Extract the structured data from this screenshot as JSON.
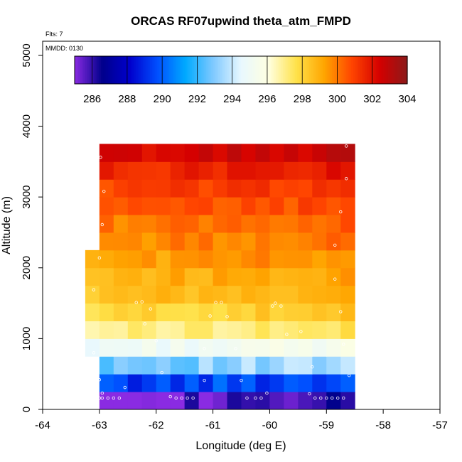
{
  "chart_data": {
    "type": "heatmap",
    "title": "ORCAS RF07upwind theta_atm_FMPD",
    "annotations": {
      "flights": "Flts: 7",
      "date": "MMDD: 0130"
    },
    "xlabel": "Longitude (deg E)",
    "ylabel": "Altitude (m)",
    "xlim": [
      -64,
      -57
    ],
    "ylim": [
      0,
      5200
    ],
    "x_ticks": [
      -64,
      -63,
      -62,
      -61,
      -60,
      -59,
      -58,
      -57
    ],
    "x_tick_labels": [
      "-64",
      "-63",
      "-62",
      "-61",
      "-60",
      "-59",
      "-58",
      "-57"
    ],
    "y_ticks": [
      0,
      1000,
      2000,
      3000,
      4000,
      5000
    ],
    "y_tick_labels": [
      "0",
      "1000",
      "2000",
      "3000",
      "4000",
      "5000"
    ],
    "colorbar": {
      "label_values": [
        286,
        288,
        290,
        292,
        294,
        296,
        298,
        300,
        302,
        304
      ],
      "labels": [
        "286",
        "288",
        "290",
        "292",
        "294",
        "296",
        "298",
        "300",
        "302",
        "304"
      ],
      "range": [
        285,
        304
      ],
      "colors": [
        "#8a2be2",
        "#00008b",
        "#0000cd",
        "#0050ff",
        "#00aaff",
        "#7fc9ff",
        "#e8f8ff",
        "#ffffe0",
        "#ffe24a",
        "#ffa500",
        "#ff4500",
        "#d50000",
        "#8b1a1a"
      ]
    },
    "cell_lon_edges": [
      -63.0,
      -62.75,
      -62.5,
      -62.25,
      -62.0,
      -61.75,
      -61.5,
      -61.25,
      -61.0,
      -60.75,
      -60.5,
      -60.25,
      -60.0,
      -59.75,
      -59.5,
      -59.25,
      -59.0,
      -58.75,
      -58.5
    ],
    "altitude_bands": [
      {
        "bottom": 0,
        "top": 250,
        "value": 285.6
      },
      {
        "bottom": 250,
        "top": 500,
        "value": 289.6
      },
      {
        "bottom": 500,
        "top": 750,
        "value": 293.2
      },
      {
        "bottom": 750,
        "top": 1000,
        "value": 295.2,
        "x_start": -63.25
      },
      {
        "bottom": 1000,
        "top": 1250,
        "value": 297.2,
        "x_start": -63.25
      },
      {
        "bottom": 1250,
        "top": 1500,
        "value": 298.1,
        "x_start": -63.25
      },
      {
        "bottom": 1500,
        "top": 1750,
        "value": 298.7,
        "x_start": -63.25
      },
      {
        "bottom": 1750,
        "top": 2000,
        "value": 299.1,
        "x_start": -63.25
      },
      {
        "bottom": 2000,
        "top": 2250,
        "value": 299.5,
        "x_start": -63.25
      },
      {
        "bottom": 2250,
        "top": 2500,
        "value": 299.9
      },
      {
        "bottom": 2500,
        "top": 2750,
        "value": 300.2
      },
      {
        "bottom": 2750,
        "top": 3000,
        "value": 300.6
      },
      {
        "bottom": 3000,
        "top": 3250,
        "value": 301.1
      },
      {
        "bottom": 3250,
        "top": 3500,
        "value": 301.7
      },
      {
        "bottom": 3500,
        "top": 3750,
        "value": 302.5
      }
    ],
    "observation_points": [
      {
        "lon": -62.98,
        "alt": 3560
      },
      {
        "lon": -62.92,
        "alt": 3080
      },
      {
        "lon": -62.95,
        "alt": 2610
      },
      {
        "lon": -63.0,
        "alt": 2140
      },
      {
        "lon": -63.1,
        "alt": 1690
      },
      {
        "lon": -62.35,
        "alt": 1510
      },
      {
        "lon": -62.25,
        "alt": 1520
      },
      {
        "lon": -62.1,
        "alt": 1420
      },
      {
        "lon": -62.2,
        "alt": 1210
      },
      {
        "lon": -62.0,
        "alt": 970
      },
      {
        "lon": -61.9,
        "alt": 520
      },
      {
        "lon": -61.15,
        "alt": 860
      },
      {
        "lon": -61.05,
        "alt": 1320
      },
      {
        "lon": -60.95,
        "alt": 1510
      },
      {
        "lon": -60.85,
        "alt": 1510
      },
      {
        "lon": -60.75,
        "alt": 1310
      },
      {
        "lon": -60.6,
        "alt": 860
      },
      {
        "lon": -59.95,
        "alt": 1460
      },
      {
        "lon": -59.9,
        "alt": 1500
      },
      {
        "lon": -59.8,
        "alt": 1460
      },
      {
        "lon": -59.7,
        "alt": 1060
      },
      {
        "lon": -59.45,
        "alt": 1100
      },
      {
        "lon": -59.25,
        "alt": 600
      },
      {
        "lon": -58.85,
        "alt": 2320
      },
      {
        "lon": -58.85,
        "alt": 1840
      },
      {
        "lon": -58.75,
        "alt": 2790
      },
      {
        "lon": -58.65,
        "alt": 3260
      },
      {
        "lon": -58.65,
        "alt": 3720
      },
      {
        "lon": -58.75,
        "alt": 1380
      },
      {
        "lon": -58.7,
        "alt": 920
      },
      {
        "lon": -58.6,
        "alt": 480
      },
      {
        "lon": -63.1,
        "alt": 800
      },
      {
        "lon": -63.0,
        "alt": 420
      },
      {
        "lon": -62.55,
        "alt": 310
      },
      {
        "lon": -62.95,
        "alt": 230
      },
      {
        "lon": -63.0,
        "alt": 160
      },
      {
        "lon": -62.95,
        "alt": 160
      },
      {
        "lon": -62.85,
        "alt": 160
      },
      {
        "lon": -62.75,
        "alt": 160
      },
      {
        "lon": -62.65,
        "alt": 160
      },
      {
        "lon": -61.75,
        "alt": 180
      },
      {
        "lon": -61.65,
        "alt": 160
      },
      {
        "lon": -61.55,
        "alt": 160
      },
      {
        "lon": -61.45,
        "alt": 160
      },
      {
        "lon": -61.35,
        "alt": 160
      },
      {
        "lon": -61.15,
        "alt": 410
      },
      {
        "lon": -60.5,
        "alt": 410
      },
      {
        "lon": -60.4,
        "alt": 160
      },
      {
        "lon": -60.25,
        "alt": 160
      },
      {
        "lon": -60.15,
        "alt": 160
      },
      {
        "lon": -60.05,
        "alt": 230
      },
      {
        "lon": -59.3,
        "alt": 220
      },
      {
        "lon": -59.2,
        "alt": 160
      },
      {
        "lon": -59.1,
        "alt": 160
      },
      {
        "lon": -59.0,
        "alt": 160
      },
      {
        "lon": -58.9,
        "alt": 160
      },
      {
        "lon": -58.8,
        "alt": 160
      },
      {
        "lon": -58.7,
        "alt": 160
      }
    ]
  }
}
